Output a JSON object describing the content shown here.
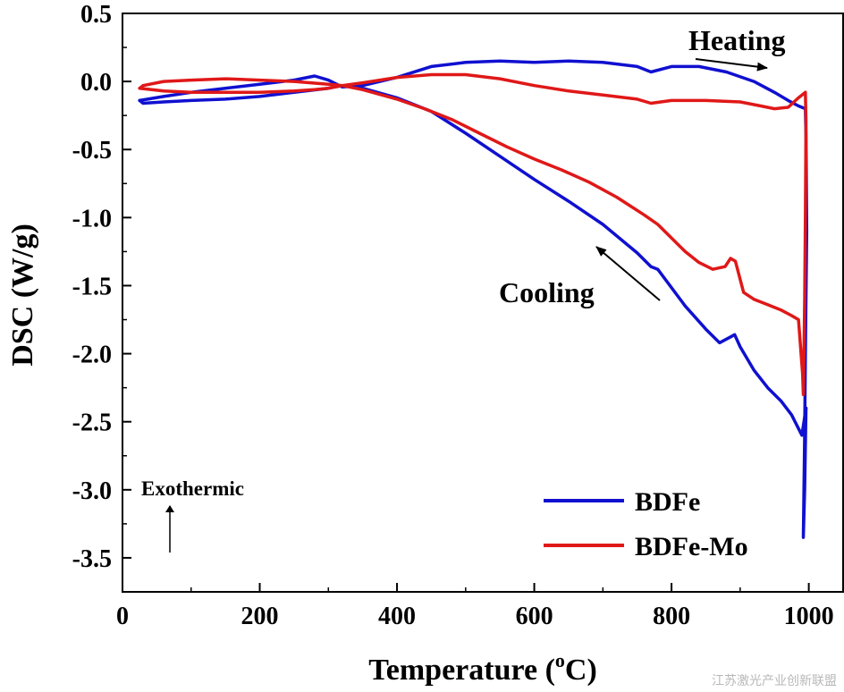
{
  "chart_data": {
    "type": "line",
    "title": "",
    "xlabel": "Temperature (",
    "xlabel_sup": "o",
    "xlabel_unit": "C)",
    "ylabel": "DSC (W/g)",
    "xlim": [
      0,
      1050
    ],
    "ylim": [
      -3.75,
      0.5
    ],
    "xticks": [
      0,
      200,
      400,
      600,
      800,
      1000
    ],
    "yticks": [
      0.5,
      0.0,
      -0.5,
      -1.0,
      -1.5,
      -2.0,
      -2.5,
      -3.0,
      -3.5
    ],
    "xtick_labels": [
      "0",
      "200",
      "400",
      "600",
      "800",
      "1000"
    ],
    "ytick_labels": [
      "0.5",
      "0.0",
      "-0.5",
      "-1.0",
      "-1.5",
      "-2.0",
      "-2.5",
      "-3.0",
      "-3.5"
    ],
    "grid": false,
    "legend_position": "bottom-right",
    "series": [
      {
        "name": "BDFe",
        "color": "#1010d0",
        "heating": {
          "x": [
            25,
            60,
            100,
            150,
            200,
            250,
            280,
            300,
            320,
            350,
            400,
            450,
            500,
            550,
            600,
            650,
            700,
            750,
            770,
            800,
            840,
            880,
            920,
            950,
            970,
            985,
            995
          ],
          "y": [
            -0.14,
            -0.11,
            -0.08,
            -0.05,
            -0.02,
            0.01,
            0.04,
            0.01,
            -0.04,
            -0.03,
            0.03,
            0.11,
            0.14,
            0.15,
            0.14,
            0.15,
            0.14,
            0.11,
            0.07,
            0.11,
            0.11,
            0.07,
            0.0,
            -0.08,
            -0.14,
            -0.18,
            -0.2
          ]
        },
        "end_segment": {
          "x": [
            995,
            996,
            997,
            995,
            994,
            993,
            992,
            994,
            996
          ],
          "y": [
            -0.2,
            -0.4,
            -1.1,
            -2.0,
            -2.6,
            -3.0,
            -3.35,
            -3.0,
            -2.4
          ]
        },
        "cooling": {
          "x": [
            996,
            990,
            985,
            975,
            960,
            940,
            920,
            900,
            892,
            885,
            870,
            850,
            820,
            780,
            770,
            750,
            700,
            650,
            600,
            550,
            500,
            450,
            400,
            350,
            320,
            300,
            250,
            200,
            150,
            100,
            60,
            30,
            25
          ],
          "y": [
            -2.4,
            -2.6,
            -2.55,
            -2.45,
            -2.35,
            -2.25,
            -2.12,
            -1.95,
            -1.86,
            -1.88,
            -1.92,
            -1.82,
            -1.65,
            -1.38,
            -1.36,
            -1.26,
            -1.05,
            -0.88,
            -0.72,
            -0.55,
            -0.38,
            -0.22,
            -0.12,
            -0.05,
            -0.03,
            -0.05,
            -0.08,
            -0.11,
            -0.13,
            -0.14,
            -0.15,
            -0.16,
            -0.14
          ]
        }
      },
      {
        "name": "BDFe-Mo",
        "color": "#e01818",
        "heating": {
          "x": [
            25,
            60,
            100,
            150,
            200,
            250,
            280,
            300,
            320,
            350,
            400,
            450,
            500,
            550,
            600,
            650,
            700,
            750,
            770,
            800,
            850,
            900,
            930,
            950,
            970,
            985,
            995
          ],
          "y": [
            -0.05,
            -0.07,
            -0.08,
            -0.08,
            -0.08,
            -0.07,
            -0.06,
            -0.05,
            -0.03,
            -0.01,
            0.03,
            0.05,
            0.05,
            0.02,
            -0.03,
            -0.07,
            -0.1,
            -0.13,
            -0.16,
            -0.14,
            -0.14,
            -0.15,
            -0.18,
            -0.2,
            -0.19,
            -0.12,
            -0.08
          ]
        },
        "end_segment": {
          "x": [
            995,
            996,
            995,
            994,
            993,
            992,
            991
          ],
          "y": [
            -0.08,
            -0.3,
            -1.0,
            -1.6,
            -2.0,
            -2.3,
            -2.15
          ]
        },
        "cooling": {
          "x": [
            991,
            985,
            975,
            960,
            940,
            920,
            905,
            893,
            886,
            878,
            860,
            840,
            820,
            790,
            780,
            760,
            720,
            680,
            640,
            600,
            560,
            520,
            480,
            440,
            400,
            350,
            320,
            300,
            250,
            200,
            150,
            100,
            60,
            30,
            25
          ],
          "y": [
            -2.15,
            -1.75,
            -1.72,
            -1.68,
            -1.64,
            -1.6,
            -1.55,
            -1.32,
            -1.3,
            -1.36,
            -1.38,
            -1.33,
            -1.25,
            -1.1,
            -1.05,
            -0.98,
            -0.85,
            -0.74,
            -0.65,
            -0.57,
            -0.48,
            -0.38,
            -0.28,
            -0.2,
            -0.13,
            -0.06,
            -0.03,
            -0.02,
            0.0,
            0.01,
            0.02,
            0.01,
            0.0,
            -0.03,
            -0.05
          ]
        }
      }
    ],
    "annotations": {
      "heating_label": "Heating",
      "cooling_label": "Cooling",
      "exothermic_label": "Exothermic"
    }
  },
  "watermark": "江苏激光产业创新联盟"
}
